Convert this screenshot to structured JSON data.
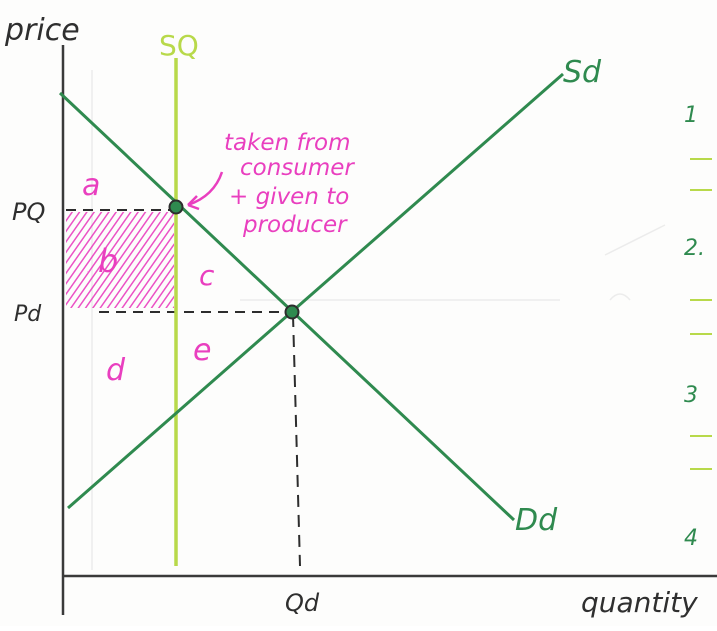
{
  "labels": {
    "y_axis": "price",
    "x_axis": "quantity",
    "quota_line": "SQ",
    "supply": "Sd",
    "demand": "Dd",
    "price_quota": "PQ",
    "price_domestic": "Pd",
    "quantity_domestic": "Qd",
    "area_a": "a",
    "area_b": "b",
    "area_c": "c",
    "area_d": "d",
    "area_e": "e",
    "annotation_line1": "taken from",
    "annotation_line2": "consumer",
    "annotation_line3": "+ given to",
    "annotation_line4": "producer",
    "margin_1": "1",
    "margin_2": "2.",
    "margin_3": "3",
    "margin_4": "4"
  },
  "colors": {
    "axis": "#3a3a3a",
    "supply_demand": "#2f8a4f",
    "quota": "#b8d94a",
    "annotation": "#e93fbf",
    "dashed": "#2d2d2d",
    "faint_background": "#cfcfcf"
  }
}
